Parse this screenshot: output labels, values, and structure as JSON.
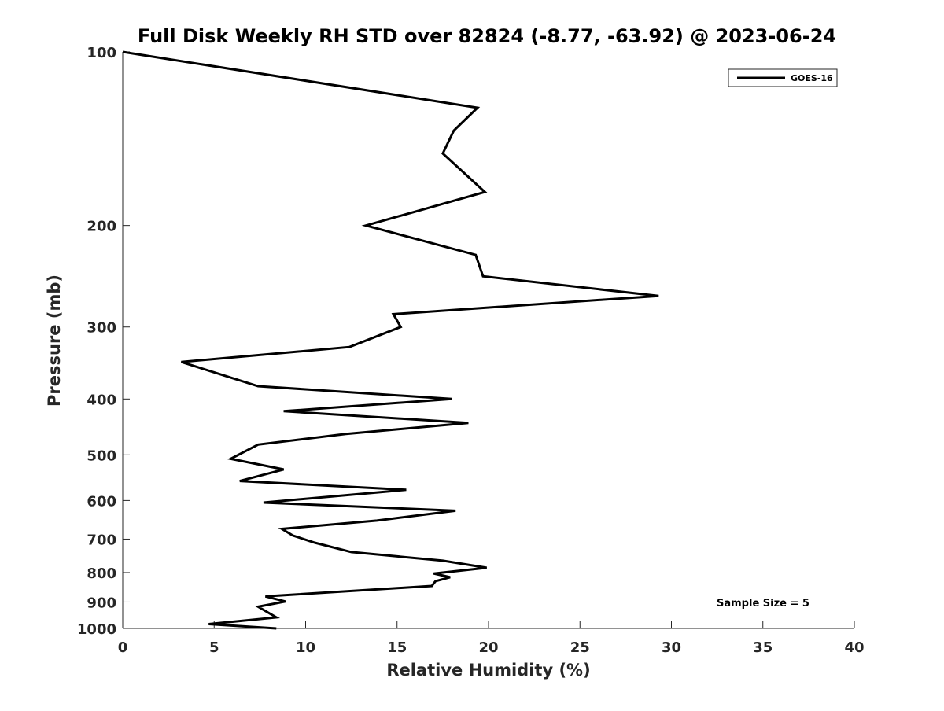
{
  "chart_data": {
    "type": "line",
    "title": "Full Disk Weekly RH STD over 82824 (-8.77, -63.92) @ 2023-06-24",
    "xlabel": "Relative Humidity (%)",
    "ylabel": "Pressure (mb)",
    "xlim": [
      0,
      40
    ],
    "ylim": [
      100,
      1000
    ],
    "y_scale": "log",
    "y_reversed": true,
    "x_ticks": [
      0,
      5,
      10,
      15,
      20,
      25,
      30,
      35,
      40
    ],
    "x_tick_labels": [
      "0",
      "5",
      "10",
      "15",
      "20",
      "25",
      "30",
      "35",
      "40"
    ],
    "y_ticks": [
      100,
      200,
      300,
      400,
      500,
      600,
      700,
      800,
      900,
      1000
    ],
    "y_tick_labels": [
      "100",
      "200",
      "300",
      "400",
      "500",
      "600",
      "700",
      "800",
      "900",
      "1000"
    ],
    "grid": false,
    "legend_position": "top-right",
    "series": [
      {
        "name": "GOES-16",
        "color": "#000000",
        "x": [
          0.0,
          19.4,
          18.1,
          17.5,
          19.8,
          13.3,
          19.3,
          19.7,
          29.3,
          14.8,
          15.2,
          12.4,
          3.2,
          7.4,
          18.0,
          8.8,
          18.9,
          12.2,
          7.4,
          5.9,
          8.8,
          6.4,
          15.5,
          7.7,
          18.2,
          13.9,
          8.7,
          9.3,
          10.5,
          12.5,
          17.5,
          19.9,
          17.0,
          17.9,
          17.1,
          16.9,
          7.8,
          8.9,
          7.4,
          8.4,
          4.7,
          8.4
        ],
        "y": [
          100,
          125,
          137,
          150,
          175,
          200,
          225,
          245,
          265,
          285,
          300,
          325,
          345,
          380,
          400,
          420,
          440,
          460,
          480,
          508,
          530,
          555,
          575,
          605,
          625,
          650,
          672,
          690,
          710,
          737,
          763,
          785,
          803,
          815,
          828,
          844,
          880,
          898,
          917,
          957,
          983,
          1000
        ]
      }
    ],
    "annotations": [
      "Sample Size = 5"
    ]
  }
}
